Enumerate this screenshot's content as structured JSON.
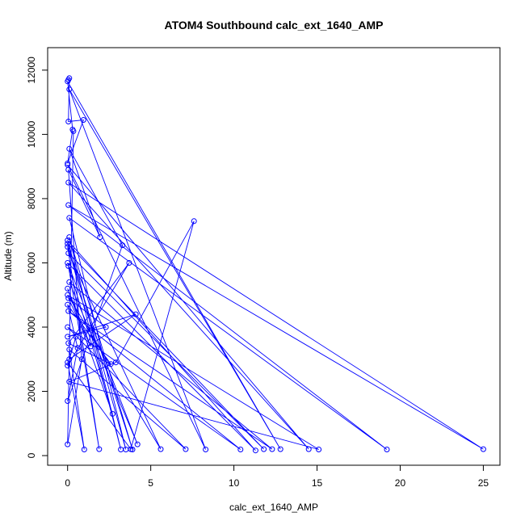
{
  "chart_data": {
    "type": "line",
    "title": "ATOM4 Southbound calc_ext_1640_AMP",
    "xlabel": "calc_ext_1640_AMP",
    "ylabel": "Altitude (m)",
    "xlim": [
      -1.2,
      26.0
    ],
    "ylim": [
      -300,
      12700
    ],
    "xticks": [
      0,
      5,
      10,
      15,
      20,
      25
    ],
    "yticks": [
      0,
      2000,
      4000,
      6000,
      8000,
      10000,
      12000
    ],
    "xtick_labels": [
      "0",
      "5",
      "10",
      "15",
      "20",
      "25"
    ],
    "ytick_labels": [
      "0",
      "2000",
      "4000",
      "6000",
      "8000",
      "10000",
      "12000"
    ],
    "grid": false,
    "legend": "none",
    "markers": "open-circle",
    "color": "#0000ff",
    "series": [
      {
        "x": [
          0.05,
          0.1,
          0.05,
          0.95,
          0.0,
          0.3,
          0.0,
          12.8,
          0.1,
          8.3,
          0.0,
          14.5,
          0.05,
          25.0,
          0.05,
          19.2,
          0.1,
          3.5,
          0.0,
          11.3,
          0.0,
          4.2,
          0.1,
          12.3,
          0.05,
          10.4,
          0.0,
          7.1,
          0.1,
          1.0,
          0.0,
          3.8,
          7.6,
          2.9,
          0.1,
          15.1,
          0.0,
          5.6,
          0.05,
          11.8,
          0.0,
          3.2,
          0.1,
          3.9,
          0.0,
          1.9,
          0.05,
          2.7,
          0.0,
          1.4,
          0.05,
          2.3,
          0.0,
          4.1,
          0.1,
          0.5,
          0.0,
          3.7,
          0.05,
          2.6,
          0.0,
          0.6,
          0.0,
          3.3,
          0.1,
          1.95,
          0.05,
          0.85,
          0.0,
          0.35
        ],
        "y": [
          11700,
          11750,
          10400,
          10450,
          9100,
          10150,
          11650,
          200,
          11400,
          190,
          9050,
          200,
          8500,
          200,
          7800,
          190,
          7400,
          190,
          6700,
          160,
          6000,
          350,
          5400,
          200,
          4500,
          190,
          4000,
          200,
          3300,
          190,
          2900,
          200,
          7300,
          2900,
          2300,
          190,
          5000,
          200,
          6300,
          200,
          6600,
          190,
          6800,
          190,
          6500,
          200,
          5900,
          1300,
          5200,
          3400,
          4900,
          4000,
          3700,
          4400,
          3000,
          3700,
          2800,
          6000,
          3500,
          2850,
          4700,
          3350,
          1700,
          6550,
          9550,
          6800,
          8900,
          3000,
          350,
          10100
        ]
      }
    ]
  }
}
